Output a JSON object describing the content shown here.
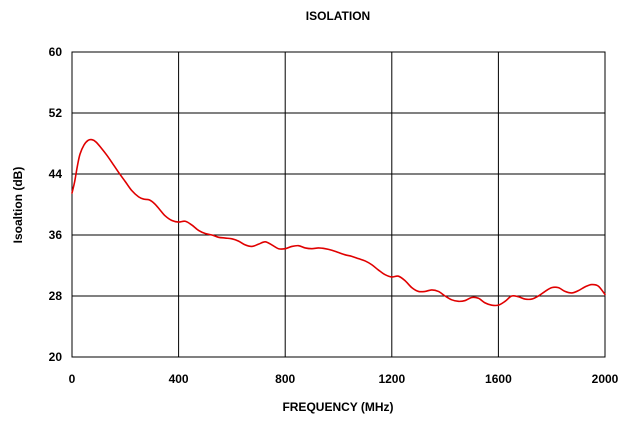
{
  "chart_data": {
    "type": "line",
    "title": "ISOLATION",
    "xlabel": "FREQUENCY (MHz)",
    "ylabel": "Isoaltion (dB)",
    "xlim": [
      0,
      2000
    ],
    "ylim": [
      20,
      60
    ],
    "x_ticks": [
      "0",
      "400",
      "800",
      "1200",
      "1600",
      "2000"
    ],
    "y_ticks": [
      "20",
      "28",
      "36",
      "44",
      "52",
      "60"
    ],
    "grid": true,
    "legend": "none",
    "series": [
      {
        "color": "#e00000",
        "x": [
          0,
          10,
          20,
          30,
          45,
          60,
          75,
          90,
          110,
          130,
          150,
          175,
          200,
          225,
          250,
          270,
          290,
          310,
          330,
          350,
          375,
          400,
          425,
          450,
          475,
          500,
          525,
          550,
          575,
          600,
          625,
          650,
          675,
          700,
          725,
          750,
          775,
          800,
          825,
          850,
          875,
          900,
          925,
          950,
          975,
          1000,
          1025,
          1050,
          1075,
          1100,
          1125,
          1150,
          1175,
          1200,
          1225,
          1250,
          1275,
          1300,
          1325,
          1350,
          1375,
          1400,
          1425,
          1450,
          1475,
          1500,
          1525,
          1550,
          1575,
          1600,
          1625,
          1650,
          1675,
          1700,
          1725,
          1750,
          1775,
          1800,
          1825,
          1850,
          1875,
          1900,
          1925,
          1950,
          1975,
          2000
        ],
        "y": [
          41.5,
          43.0,
          45.0,
          46.6,
          47.8,
          48.4,
          48.5,
          48.2,
          47.4,
          46.5,
          45.5,
          44.2,
          43.0,
          41.8,
          41.0,
          40.7,
          40.6,
          40.1,
          39.3,
          38.5,
          37.9,
          37.7,
          37.8,
          37.3,
          36.6,
          36.2,
          36.0,
          35.7,
          35.6,
          35.5,
          35.2,
          34.7,
          34.5,
          34.8,
          35.1,
          34.7,
          34.2,
          34.2,
          34.5,
          34.6,
          34.3,
          34.2,
          34.3,
          34.2,
          34.0,
          33.7,
          33.4,
          33.2,
          32.9,
          32.6,
          32.1,
          31.4,
          30.8,
          30.5,
          30.6,
          30.0,
          29.1,
          28.6,
          28.6,
          28.8,
          28.6,
          28.0,
          27.5,
          27.3,
          27.4,
          27.8,
          27.7,
          27.1,
          26.8,
          26.8,
          27.3,
          28.0,
          27.9,
          27.6,
          27.6,
          28.0,
          28.6,
          29.1,
          29.1,
          28.6,
          28.4,
          28.7,
          29.2,
          29.5,
          29.3,
          28.2
        ]
      }
    ]
  }
}
